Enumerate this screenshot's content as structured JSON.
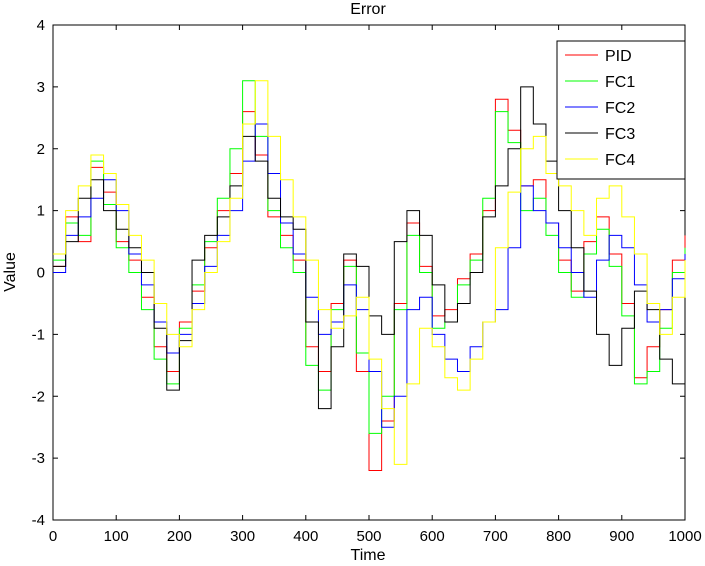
{
  "chart_data": {
    "type": "line",
    "title": "Error",
    "xlabel": "Time",
    "ylabel": "Value",
    "xlim": [
      0,
      1000
    ],
    "ylim": [
      -4,
      4
    ],
    "xticks": [
      "0",
      "100",
      "200",
      "300",
      "400",
      "500",
      "600",
      "700",
      "800",
      "900",
      "1000"
    ],
    "yticks": [
      "-4",
      "-3",
      "-2",
      "-1",
      "0",
      "1",
      "2",
      "3",
      "4"
    ],
    "grid": false,
    "legend_position": "top-right",
    "series": [
      {
        "name": "PID",
        "color": "#ff0000",
        "x": [
          0,
          20,
          40,
          60,
          80,
          100,
          120,
          140,
          160,
          180,
          200,
          220,
          240,
          260,
          280,
          300,
          320,
          340,
          360,
          380,
          400,
          420,
          440,
          460,
          480,
          500,
          520,
          540,
          560,
          580,
          600,
          620,
          640,
          660,
          680,
          700,
          720,
          740,
          760,
          780,
          800,
          820,
          840,
          860,
          880,
          900,
          920,
          940,
          960,
          980,
          1000
        ],
        "values": [
          0.1,
          0.9,
          0.5,
          1.7,
          1.3,
          0.5,
          0.2,
          -0.4,
          -1.2,
          -1.6,
          -0.8,
          -0.3,
          0.4,
          1.0,
          1.6,
          2.6,
          1.9,
          0.9,
          0.6,
          0.2,
          -1.2,
          -1.6,
          -0.5,
          0.2,
          -1.6,
          -3.2,
          -2.4,
          -0.5,
          0.8,
          0.1,
          -0.7,
          -0.6,
          -0.1,
          0.3,
          1.0,
          2.8,
          2.3,
          1.4,
          1.5,
          0.8,
          0.2,
          -0.3,
          0.5,
          0.9,
          0.3,
          -0.5,
          -1.7,
          -1.2,
          -0.6,
          0.2,
          0.6
        ]
      },
      {
        "name": "FC1",
        "color": "#00ff00",
        "x": [
          0,
          20,
          40,
          60,
          80,
          100,
          120,
          140,
          160,
          180,
          200,
          220,
          240,
          260,
          280,
          300,
          320,
          340,
          360,
          380,
          400,
          420,
          440,
          460,
          480,
          500,
          520,
          540,
          560,
          580,
          600,
          620,
          640,
          660,
          680,
          700,
          720,
          740,
          760,
          780,
          800,
          820,
          840,
          860,
          880,
          900,
          920,
          940,
          960,
          980,
          1000
        ],
        "values": [
          0.2,
          0.8,
          0.6,
          1.8,
          1.1,
          0.4,
          0.0,
          -0.6,
          -1.4,
          -1.8,
          -0.9,
          -0.2,
          0.5,
          1.2,
          2.0,
          3.1,
          2.2,
          1.0,
          0.4,
          0.0,
          -1.5,
          -1.9,
          -0.6,
          0.1,
          -1.3,
          -2.6,
          -2.0,
          -0.6,
          0.6,
          0.0,
          -0.9,
          -0.8,
          -0.2,
          0.2,
          1.2,
          2.6,
          2.1,
          1.0,
          1.2,
          0.6,
          0.0,
          -0.4,
          0.3,
          0.7,
          0.1,
          -0.7,
          -1.8,
          -1.6,
          -0.9,
          0.0,
          0.4
        ]
      },
      {
        "name": "FC2",
        "color": "#0000ff",
        "x": [
          0,
          20,
          40,
          60,
          80,
          100,
          120,
          140,
          160,
          180,
          200,
          220,
          240,
          260,
          280,
          300,
          320,
          340,
          360,
          380,
          400,
          420,
          440,
          460,
          480,
          500,
          520,
          540,
          560,
          580,
          600,
          620,
          640,
          660,
          680,
          700,
          720,
          740,
          760,
          780,
          800,
          820,
          840,
          860,
          880,
          900,
          920,
          940,
          960,
          980,
          1000
        ],
        "values": [
          0.0,
          0.6,
          0.9,
          1.2,
          1.5,
          1.0,
          0.3,
          -0.2,
          -0.8,
          -1.3,
          -1.0,
          -0.5,
          0.1,
          0.6,
          1.0,
          1.8,
          2.4,
          1.6,
          0.8,
          0.3,
          -0.4,
          -1.0,
          -0.8,
          -0.2,
          -0.6,
          -1.6,
          -2.5,
          -2.0,
          -0.6,
          -0.4,
          -1.0,
          -1.4,
          -1.6,
          -1.2,
          -0.8,
          -0.6,
          0.4,
          1.4,
          1.0,
          0.8,
          0.4,
          0.0,
          -0.4,
          0.2,
          0.6,
          0.4,
          -0.2,
          -0.8,
          -0.6,
          -0.1,
          0.3
        ]
      },
      {
        "name": "FC3",
        "color": "#000000",
        "x": [
          0,
          20,
          40,
          60,
          80,
          100,
          120,
          140,
          160,
          180,
          200,
          220,
          240,
          260,
          280,
          300,
          320,
          340,
          360,
          380,
          400,
          420,
          440,
          460,
          480,
          500,
          520,
          540,
          560,
          580,
          600,
          620,
          640,
          660,
          680,
          700,
          720,
          740,
          760,
          780,
          800,
          820,
          840,
          860,
          880,
          900,
          920,
          940,
          960,
          980,
          1000
        ],
        "values": [
          0.1,
          0.5,
          1.2,
          1.5,
          1.0,
          0.7,
          0.4,
          0.0,
          -0.9,
          -1.9,
          -1.1,
          0.2,
          0.6,
          0.9,
          1.4,
          2.2,
          1.8,
          1.2,
          0.9,
          0.7,
          -0.8,
          -2.2,
          -1.2,
          0.3,
          0.1,
          -0.7,
          -1.0,
          0.5,
          1.0,
          0.6,
          -0.2,
          -0.8,
          -0.5,
          0.0,
          0.9,
          1.4,
          2.0,
          3.0,
          2.4,
          1.8,
          1.0,
          0.4,
          -0.3,
          -1.0,
          -1.5,
          -0.9,
          -0.3,
          -0.6,
          -1.4,
          -1.8,
          -0.9
        ]
      },
      {
        "name": "FC4",
        "color": "#ffff00",
        "x": [
          0,
          20,
          40,
          60,
          80,
          100,
          120,
          140,
          160,
          180,
          200,
          220,
          240,
          260,
          280,
          300,
          320,
          340,
          360,
          380,
          400,
          420,
          440,
          460,
          480,
          500,
          520,
          540,
          560,
          580,
          600,
          620,
          640,
          660,
          680,
          700,
          720,
          740,
          760,
          780,
          800,
          820,
          840,
          860,
          880,
          900,
          920,
          940,
          960,
          980,
          1000
        ],
        "values": [
          0.3,
          1.0,
          1.4,
          1.9,
          1.6,
          1.1,
          0.6,
          0.2,
          -0.5,
          -1.0,
          -1.2,
          -0.6,
          0.0,
          0.5,
          1.2,
          2.4,
          3.1,
          2.2,
          1.5,
          0.9,
          0.2,
          -0.6,
          -0.9,
          -0.7,
          -0.4,
          -1.4,
          -2.2,
          -3.1,
          -1.8,
          -0.9,
          -1.2,
          -1.7,
          -1.9,
          -1.4,
          -0.8,
          0.4,
          1.3,
          2.0,
          2.2,
          1.6,
          1.4,
          1.0,
          0.6,
          1.2,
          1.4,
          0.9,
          0.3,
          -0.5,
          -1.0,
          -0.4,
          0.2
        ]
      }
    ]
  }
}
